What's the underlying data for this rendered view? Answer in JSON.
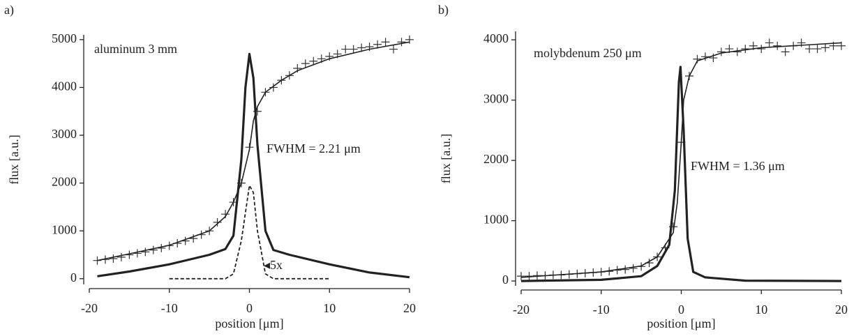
{
  "chart_data": [
    {
      "type": "line",
      "label": "a)",
      "xlabel": "position [μm]",
      "ylabel": "flux [a.u.]",
      "annotations": [
        "aluminum 3 mm",
        "FWHM = 2.21 μm",
        "◂5x"
      ],
      "xlim": [
        -20,
        20
      ],
      "ylim": [
        -120,
        5100
      ],
      "xticks": [
        -20,
        -10,
        0,
        10,
        20
      ],
      "yticks": [
        0,
        1000,
        2000,
        3000,
        4000,
        5000
      ],
      "series": [
        {
          "style": "markers",
          "color": "#333333",
          "x": [
            -19,
            -18,
            -17,
            -16,
            -15,
            -14,
            -13,
            -12,
            -11,
            -10,
            -9,
            -8,
            -7,
            -6,
            -5,
            -4,
            -3,
            -2,
            -1,
            0,
            1,
            2,
            3,
            4,
            5,
            6,
            7,
            8,
            9,
            10,
            11,
            12,
            13,
            14,
            15,
            16,
            17,
            18,
            19,
            20
          ],
          "values": [
            380,
            400,
            420,
            450,
            500,
            530,
            560,
            600,
            640,
            690,
            740,
            790,
            840,
            920,
            1000,
            1180,
            1350,
            1600,
            2000,
            2750,
            3500,
            3900,
            4000,
            4150,
            4250,
            4400,
            4500,
            4550,
            4600,
            4650,
            4700,
            4800,
            4800,
            4830,
            4850,
            4900,
            4950,
            4800,
            4950,
            5000
          ]
        },
        {
          "style": "line",
          "width": 1.6,
          "color": "#222222",
          "x": [
            -19,
            -15,
            -10,
            -5,
            -3,
            -2,
            -1,
            0,
            0.5,
            1,
            2,
            4,
            6,
            10,
            15,
            20
          ],
          "values": [
            380,
            520,
            700,
            1000,
            1300,
            1600,
            2000,
            2700,
            3300,
            3600,
            3900,
            4150,
            4350,
            4600,
            4800,
            4950
          ]
        },
        {
          "style": "line",
          "width": 3.2,
          "color": "#222222",
          "x": [
            -19,
            -15,
            -10,
            -5,
            -3,
            -2,
            -1,
            -0.5,
            0,
            0.5,
            1,
            2,
            3,
            5,
            10,
            15,
            20
          ],
          "values": [
            50,
            150,
            300,
            500,
            620,
            900,
            2500,
            4000,
            4700,
            4200,
            2800,
            1000,
            600,
            500,
            300,
            130,
            30
          ]
        },
        {
          "style": "dashed",
          "width": 1.8,
          "color": "#222222",
          "x": [
            -10,
            -3,
            -2,
            -1,
            0,
            0.5,
            1,
            2,
            3,
            10
          ],
          "values": [
            0,
            0,
            100,
            800,
            1950,
            1800,
            1000,
            100,
            0,
            0
          ]
        }
      ]
    },
    {
      "type": "line",
      "label": "b)",
      "xlabel": "position [μm]",
      "ylabel": "flux [a.u.]",
      "annotations": [
        "molybdenum 250 μm",
        "FWHM = 1.36 μm"
      ],
      "xlim": [
        -20,
        20
      ],
      "ylim": [
        -80,
        4140
      ],
      "xticks": [
        -20,
        -10,
        0,
        10,
        20
      ],
      "yticks": [
        0,
        1000,
        2000,
        3000,
        4000
      ],
      "series": [
        {
          "style": "markers",
          "color": "#333333",
          "x": [
            -20,
            -19,
            -18,
            -17,
            -16,
            -15,
            -14,
            -13,
            -12,
            -11,
            -10,
            -9,
            -8,
            -7,
            -6,
            -5,
            -4,
            -3,
            -2,
            -1,
            0,
            1,
            2,
            3,
            4,
            5,
            6,
            7,
            8,
            9,
            10,
            11,
            12,
            13,
            14,
            15,
            16,
            17,
            18,
            19,
            20
          ],
          "values": [
            80,
            80,
            90,
            90,
            100,
            100,
            110,
            120,
            130,
            140,
            150,
            160,
            180,
            190,
            210,
            240,
            300,
            400,
            550,
            900,
            2300,
            3400,
            3680,
            3720,
            3700,
            3800,
            3850,
            3800,
            3850,
            3900,
            3850,
            3950,
            3900,
            3800,
            3900,
            3950,
            3850,
            3850,
            3870,
            3900,
            3900
          ]
        },
        {
          "style": "line",
          "width": 1.6,
          "color": "#222222",
          "x": [
            -20,
            -10,
            -5,
            -3,
            -1,
            -0.5,
            0,
            0.3,
            1,
            2,
            5,
            10,
            20
          ],
          "values": [
            60,
            150,
            250,
            400,
            800,
            1300,
            2300,
            3000,
            3400,
            3650,
            3780,
            3870,
            3950
          ]
        },
        {
          "style": "line",
          "width": 3.2,
          "color": "#222222",
          "x": [
            -20,
            -10,
            -5,
            -3,
            -1.5,
            -0.8,
            -0.3,
            -0.1,
            0.3,
            0.8,
            1.5,
            3,
            8,
            20
          ],
          "values": [
            0,
            20,
            80,
            250,
            600,
            1500,
            3300,
            3550,
            2500,
            700,
            150,
            60,
            5,
            0
          ]
        }
      ]
    }
  ]
}
